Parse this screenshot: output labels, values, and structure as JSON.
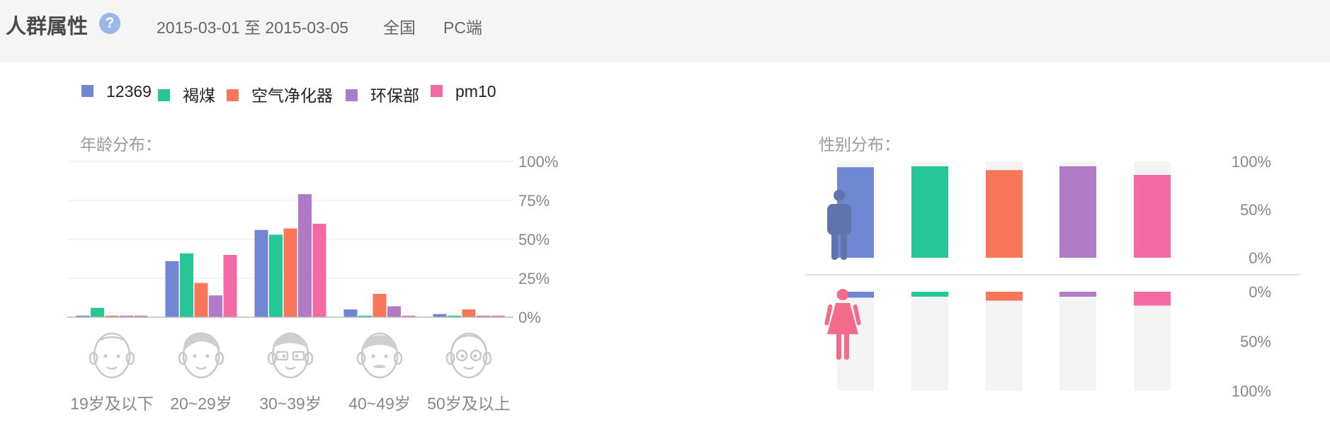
{
  "header": {
    "title": "人群属性",
    "help_icon": "question-circle-icon",
    "date_range": "2015-03-01 至 2015-03-05",
    "region": "全国",
    "platform": "PC端"
  },
  "colors": {
    "12369": "#6f86d3",
    "褐煤": "#26c796",
    "空气净化器": "#f87659",
    "环保部": "#b07ac6",
    "pm10": "#f36aa4"
  },
  "legend": [
    {
      "name": "12369",
      "color": "#6f86d3"
    },
    {
      "name": "褐煤",
      "color": "#26c796"
    },
    {
      "name": "空气净化器",
      "color": "#f87659"
    },
    {
      "name": "环保部",
      "color": "#b07ac6"
    },
    {
      "name": "pm10",
      "color": "#f36aa4"
    }
  ],
  "chart_data": [
    {
      "type": "bar",
      "title": "年龄分布：",
      "categories": [
        "19岁及以下",
        "20~29岁",
        "30~39岁",
        "40~49岁",
        "50岁及以上"
      ],
      "category_icons": [
        "face-child-icon",
        "face-young-icon",
        "face-glasses-icon",
        "face-mustache-icon",
        "face-elder-icon"
      ],
      "ylim": [
        0,
        100
      ],
      "yticks": [
        "100%",
        "75%",
        "50%",
        "25%",
        "0%"
      ],
      "grid": true,
      "series": [
        {
          "name": "12369",
          "color": "#6f86d3",
          "values": [
            1,
            36,
            56,
            5,
            2
          ]
        },
        {
          "name": "褐煤",
          "color": "#26c796",
          "values": [
            6,
            41,
            53,
            1,
            1
          ]
        },
        {
          "name": "空气净化器",
          "color": "#f87659",
          "values": [
            1,
            22,
            57,
            15,
            5
          ]
        },
        {
          "name": "环保部",
          "color": "#b07ac6",
          "values": [
            1,
            14,
            79,
            7,
            1
          ]
        },
        {
          "name": "pm10",
          "color": "#f36aa4",
          "values": [
            1,
            40,
            60,
            1,
            1
          ]
        }
      ]
    },
    {
      "type": "bar",
      "title": "性别分布：",
      "groups": [
        "male",
        "female"
      ],
      "group_icons": [
        "male-icon",
        "female-icon"
      ],
      "ylim": [
        0,
        100
      ],
      "male_ticks": [
        "100%",
        "50%",
        "0%"
      ],
      "female_ticks": [
        "0%",
        "50%",
        "100%"
      ],
      "series": [
        {
          "name": "12369",
          "color": "#6f86d3",
          "male": 94,
          "female": 6
        },
        {
          "name": "褐煤",
          "color": "#26c796",
          "male": 95,
          "female": 5
        },
        {
          "name": "空气净化器",
          "color": "#f87659",
          "male": 91,
          "female": 9
        },
        {
          "name": "环保部",
          "color": "#b07ac6",
          "male": 95,
          "female": 5
        },
        {
          "name": "pm10",
          "color": "#f36aa4",
          "male": 86,
          "female": 14
        }
      ]
    }
  ]
}
